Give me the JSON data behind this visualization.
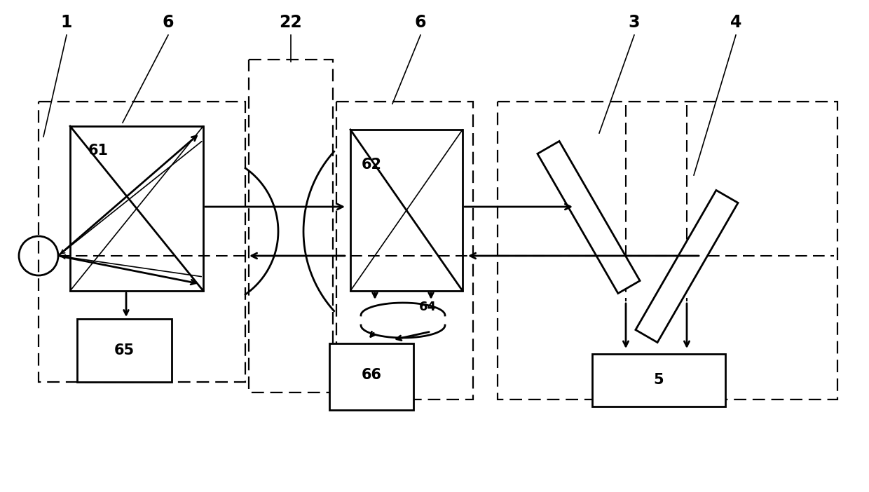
{
  "bg": "#ffffff",
  "lc": "#000000",
  "fig_w": 12.4,
  "fig_h": 7.02,
  "dpi": 100,
  "lw_thick": 2.0,
  "lw_med": 1.5,
  "lw_thin": 1.2
}
